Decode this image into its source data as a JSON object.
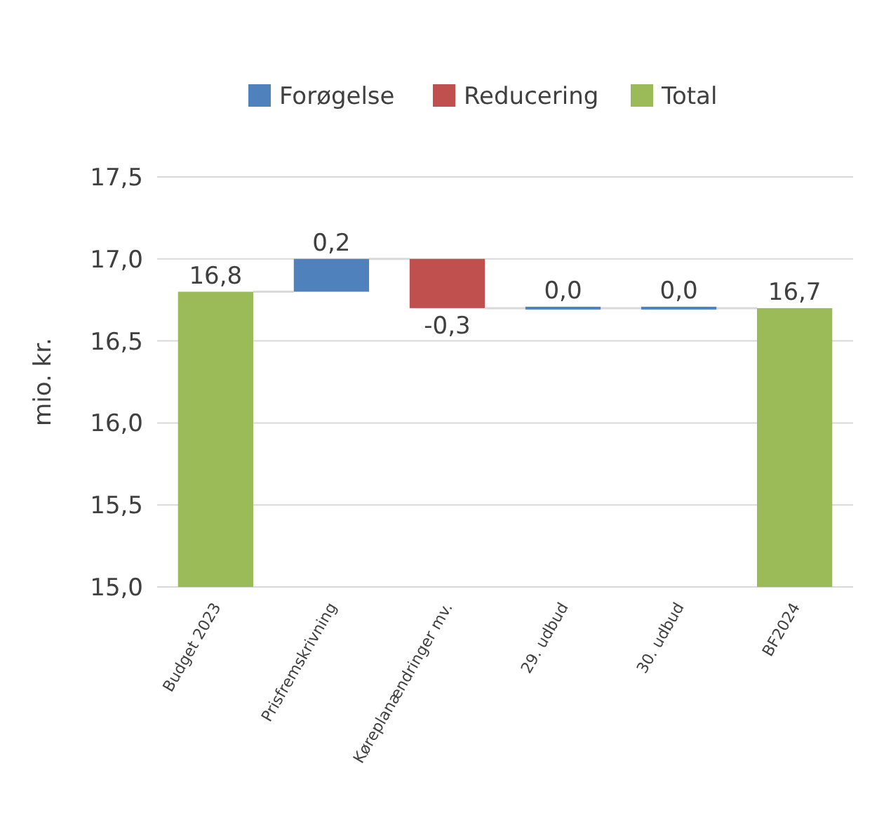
{
  "chart_data": {
    "type": "bar",
    "ylabel": "mio. kr.",
    "categories": [
      "Budget 2023",
      "Prisfremskrivning",
      "Køreplanændringer mv.",
      "29. udbud",
      "30. udbud",
      "BF2024"
    ],
    "series": [
      {
        "name": "Forøgelse",
        "color": "#4f81bd",
        "base": [
          null,
          16.8,
          null,
          16.7,
          16.7,
          null
        ],
        "values": [
          null,
          0.2,
          null,
          0.0,
          0.0,
          null
        ],
        "value_labels": [
          null,
          "0,2",
          null,
          "0,0",
          "0,0",
          null
        ]
      },
      {
        "name": "Reducering",
        "color": "#c0504d",
        "base": [
          null,
          null,
          17.0,
          null,
          null,
          null
        ],
        "values": [
          null,
          null,
          -0.3,
          null,
          null,
          null
        ],
        "value_labels": [
          null,
          null,
          "-0,3",
          null,
          null,
          null
        ]
      },
      {
        "name": "Total",
        "color": "#9bbb59",
        "values": [
          16.8,
          null,
          null,
          null,
          null,
          16.7
        ],
        "value_labels": [
          "16,8",
          null,
          null,
          null,
          null,
          "16,7"
        ]
      }
    ],
    "ylim": [
      15.0,
      17.5
    ],
    "yticks": [
      {
        "value": 15.0,
        "label": "15,0"
      },
      {
        "value": 15.5,
        "label": "15,5"
      },
      {
        "value": 16.0,
        "label": "16,0"
      },
      {
        "value": 16.5,
        "label": "16,5"
      },
      {
        "value": 17.0,
        "label": "17,0"
      },
      {
        "value": 17.5,
        "label": "17,5"
      }
    ],
    "grid": "y",
    "legend": "top"
  }
}
